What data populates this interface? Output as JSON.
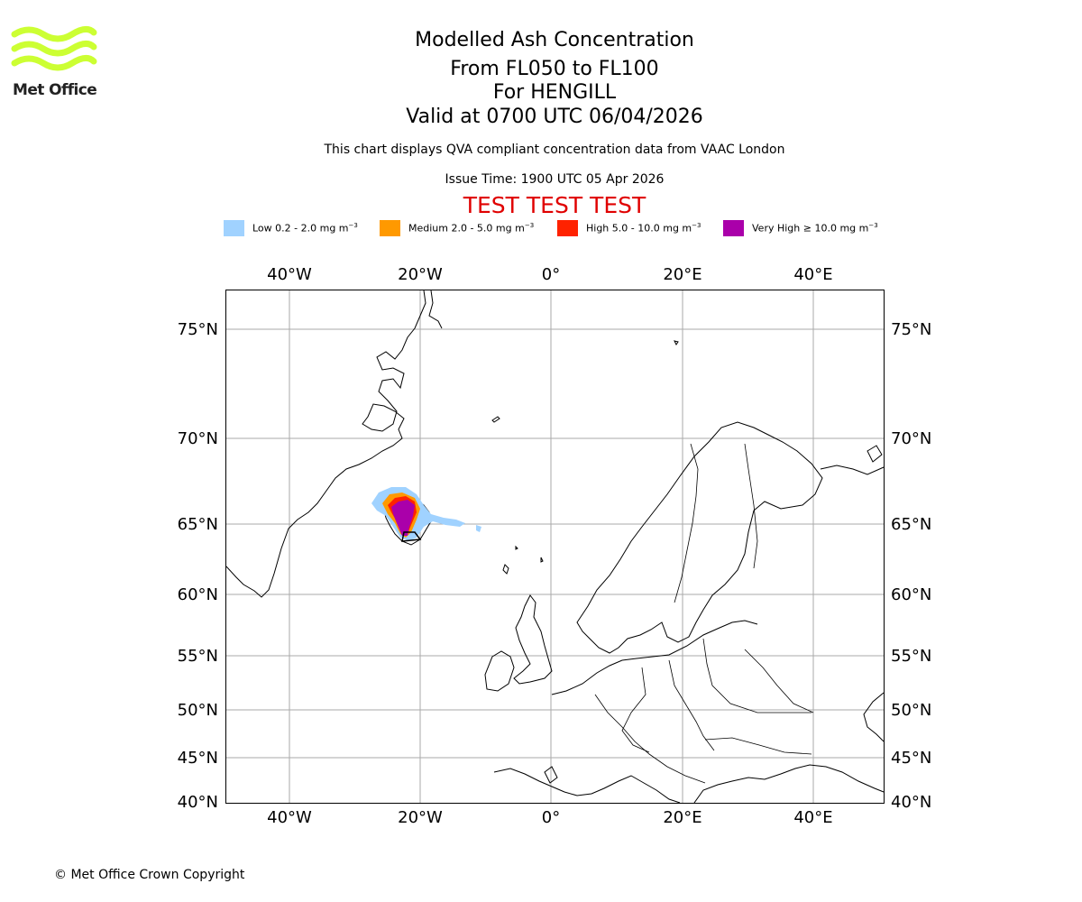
{
  "logo": {
    "text": "Met Office",
    "accent_color": "#ccff33"
  },
  "header": {
    "title": "Modelled Ash Concentration",
    "levels": "From FL050 to FL100",
    "volcano": "For HENGILL",
    "valid": "Valid at 0700 UTC 06/04/2026",
    "description": "This chart displays QVA compliant concentration data from VAAC London",
    "issue_time": "Issue Time: 1900 UTC 05 Apr 2026",
    "test_banner": "TEST TEST TEST"
  },
  "legend": [
    {
      "label": "Low 0.2 - 2.0 mg m",
      "unit_exp": "−3",
      "color": "#a0d2ff"
    },
    {
      "label": "Medium 2.0 - 5.0 mg m",
      "unit_exp": "−3",
      "color": "#ff9900"
    },
    {
      "label": "High 5.0 - 10.0 mg m",
      "unit_exp": "−3",
      "color": "#ff2200"
    },
    {
      "label": "Very High  ≥  10.0 mg m",
      "unit_exp": "−3",
      "color": "#aa00aa"
    }
  ],
  "map": {
    "lon_labels": [
      "40°W",
      "20°W",
      "0°",
      "20°E",
      "40°E"
    ],
    "lat_labels": [
      "75°N",
      "70°N",
      "65°N",
      "60°N",
      "55°N",
      "50°N",
      "45°N",
      "40°N"
    ],
    "grid_color": "#aaaaaa"
  },
  "footer": {
    "copyright": "© Met Office Crown Copyright"
  }
}
